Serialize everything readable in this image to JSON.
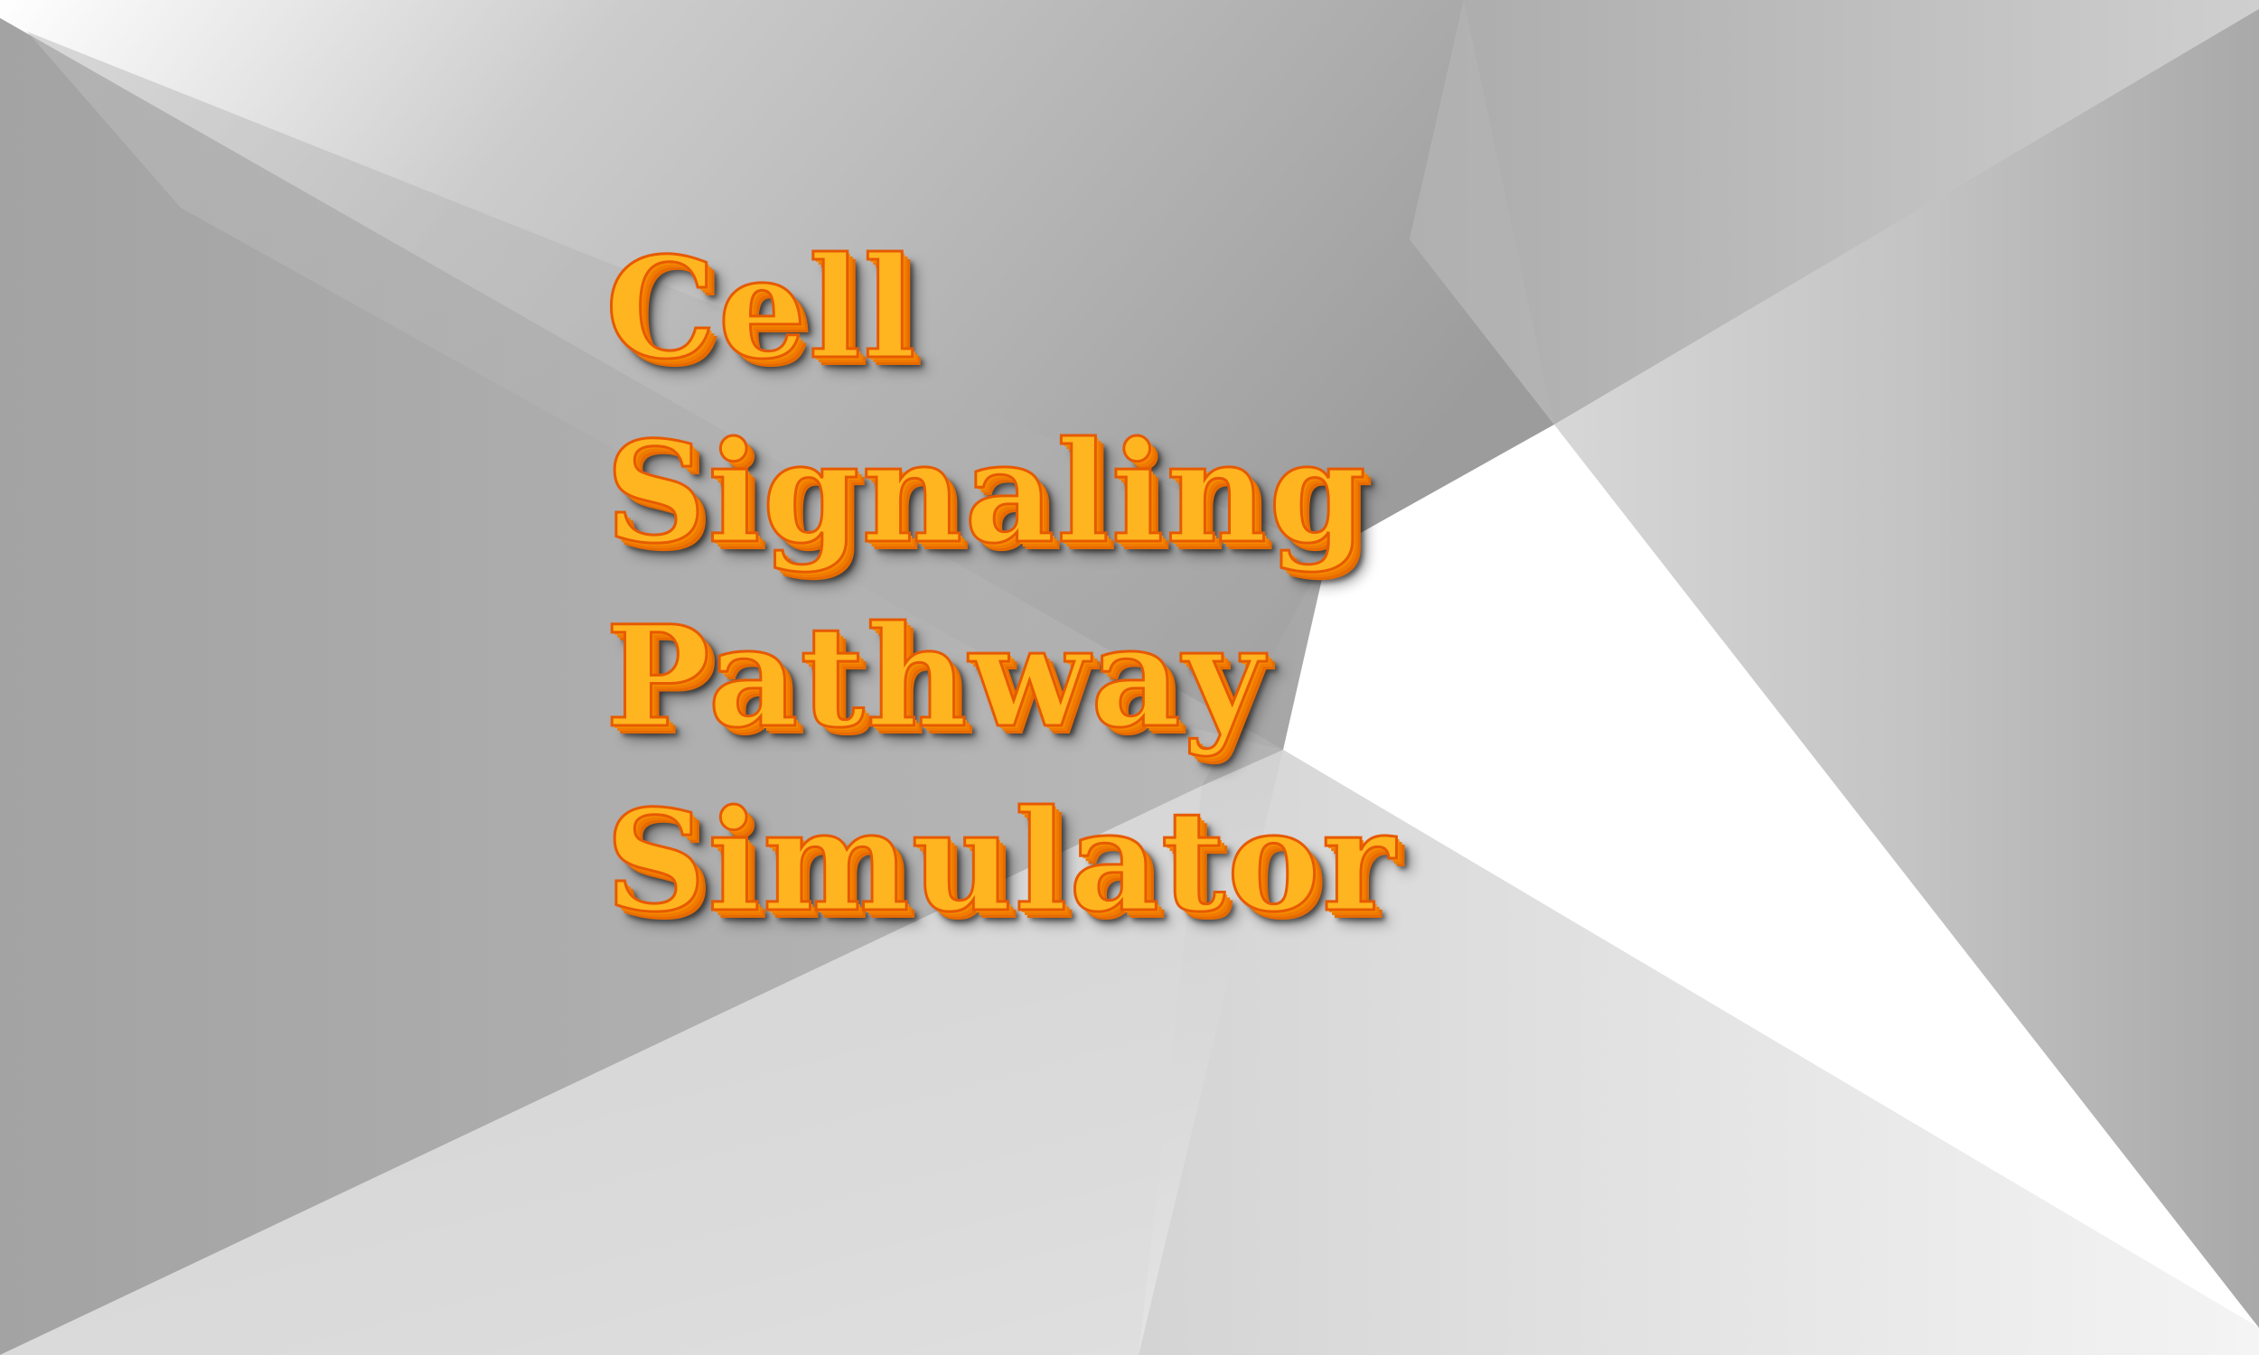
{
  "title": {
    "lines": [
      "Cell",
      "Signaling",
      "Pathway",
      "Simulator"
    ]
  },
  "colors": {
    "title_fill": "#ffb51f",
    "title_outline": "#e65a00",
    "background": "#cfcfcf"
  }
}
